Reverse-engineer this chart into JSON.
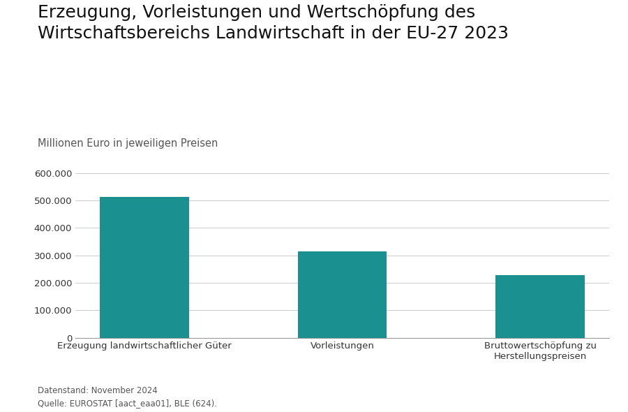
{
  "title_line1": "Erzeugung, Vorleistungen und Wertschöpfung des",
  "title_line2": "Wirtschaftsbereichs Landwirtschaft in der EU-27 2023",
  "subtitle": "Millionen Euro in jeweiligen Preisen",
  "categories": [
    "Erzeugung landwirtschaftlicher Güter",
    "Vorleistungen",
    "Bruttowertschöpfung zu\nHerstellungspreisen"
  ],
  "values": [
    514000,
    315000,
    228000
  ],
  "bar_color": "#1a9090",
  "ylim": [
    0,
    600000
  ],
  "yticks": [
    0,
    100000,
    200000,
    300000,
    400000,
    500000,
    600000
  ],
  "ytick_labels": [
    "0",
    "100.000",
    "200.000",
    "300.000",
    "400.000",
    "500.000",
    "600.000"
  ],
  "footnote_line1": "Datenstand: November 2024",
  "footnote_line2": "Quelle: EUROSTAT [aact_eaa01], BLE (624).",
  "background_color": "#ffffff",
  "title_fontsize": 18,
  "subtitle_fontsize": 10.5,
  "tick_fontsize": 9.5,
  "footnote_fontsize": 8.5,
  "bar_width": 0.45,
  "grid_color": "#cccccc"
}
